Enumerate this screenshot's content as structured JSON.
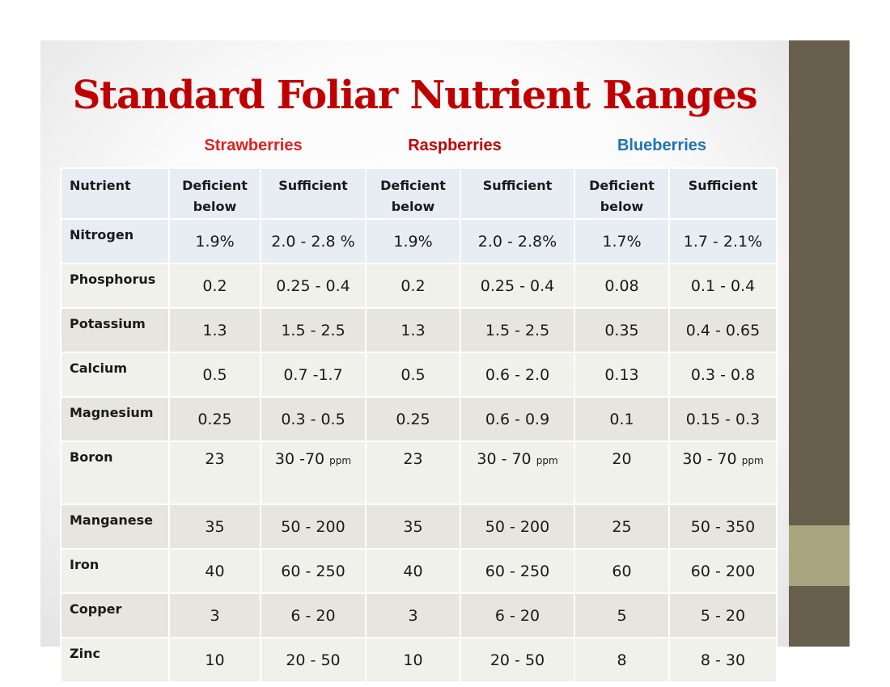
{
  "title": "Standard Foliar Nutrient Ranges",
  "crops": [
    "Strawberries",
    "Raspberries",
    "Blueberries"
  ],
  "colors": {
    "title": "#c00000",
    "strawberries": "#e32020",
    "raspberries": "#c00000",
    "blueberries": "#1f73b7",
    "sidebar": "#675f4c",
    "sidebar_accent": "#a9a57f"
  },
  "table": {
    "headers": [
      "Nutrient",
      "Deficient below",
      "Sufficient",
      "Deficient below",
      "Sufficient",
      "Deficient below",
      "Sufficient"
    ],
    "unit_note": "ppm",
    "rows": [
      [
        "Nitrogen",
        "1.9%",
        "2.0 - 2.8 %",
        "1.9%",
        "2.0 - 2.8%",
        "1.7%",
        "1.7 - 2.1%"
      ],
      [
        "Phosphorus",
        "0.2",
        "0.25 - 0.4",
        "0.2",
        "0.25 - 0.4",
        "0.08",
        "0.1 - 0.4"
      ],
      [
        "Potassium",
        "1.3",
        "1.5 - 2.5",
        "1.3",
        "1.5 - 2.5",
        "0.35",
        "0.4 - 0.65"
      ],
      [
        "Calcium",
        "0.5",
        "0.7 -1.7",
        "0.5",
        "0.6 - 2.0",
        "0.13",
        "0.3 - 0.8"
      ],
      [
        "Magnesium",
        "0.25",
        "0.3 - 0.5",
        "0.25",
        "0.6 - 0.9",
        "0.1",
        "0.15 - 0.3"
      ],
      [
        "Boron",
        "23",
        "30 -70",
        "23",
        "30 - 70",
        "20",
        "30 - 70"
      ],
      [
        "Manganese",
        "35",
        "50 - 200",
        "35",
        "50 - 200",
        "25",
        "50 - 350"
      ],
      [
        "Iron",
        "40",
        "60 - 250",
        "40",
        "60 - 250",
        "60",
        "60 - 200"
      ],
      [
        "Copper",
        "3",
        "6 - 20",
        "3",
        "6 - 20",
        "5",
        "5 - 20"
      ],
      [
        "Zinc",
        "10",
        "20 - 50",
        "10",
        "20 - 50",
        "8",
        "8 - 30"
      ]
    ]
  }
}
